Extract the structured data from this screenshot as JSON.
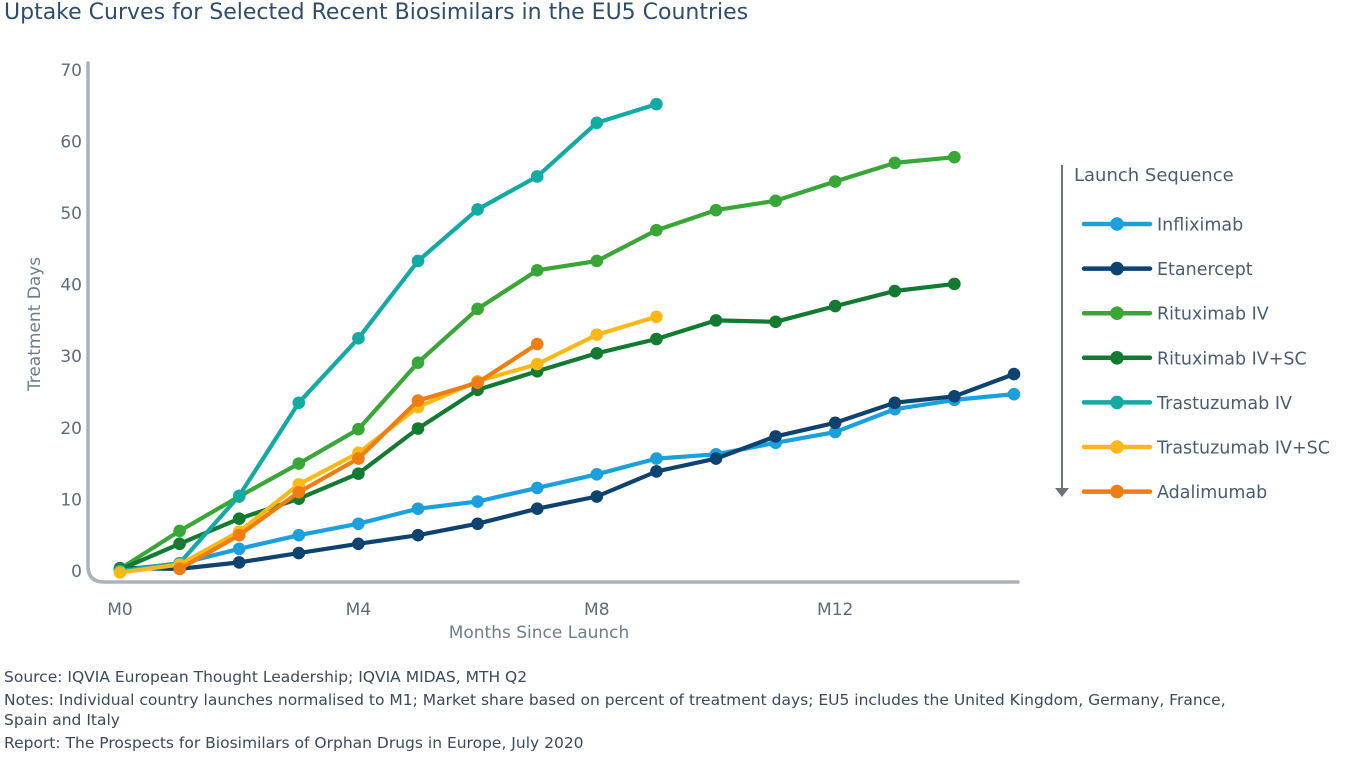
{
  "chart_data": {
    "type": "line",
    "title": "Uptake Curves for Selected Recent Biosimilars in the EU5 Countries",
    "xlabel": "Months Since Launch",
    "ylabel": "Treatment Days",
    "xlim": [
      0,
      15
    ],
    "ylim": [
      0,
      70
    ],
    "x_ticks": [
      0,
      4,
      8,
      12
    ],
    "x_tick_labels": [
      "M0",
      "M4",
      "M8",
      "M12"
    ],
    "y_ticks": [
      0,
      10,
      20,
      30,
      40,
      50,
      60,
      70
    ],
    "y_tick_labels": [
      "0",
      "10",
      "20",
      "30",
      "40",
      "50",
      "60",
      "70"
    ],
    "grid": false,
    "legend_title": "Launch Sequence",
    "legend_position": "right",
    "series": [
      {
        "name": "Infliximab",
        "color": "#1ba0db",
        "x": [
          0,
          1,
          2,
          3,
          4,
          5,
          6,
          7,
          8,
          9,
          10,
          11,
          12,
          13,
          14,
          15
        ],
        "values": [
          0.2,
          1.0,
          3.1,
          5.0,
          6.6,
          8.7,
          9.7,
          11.6,
          13.5,
          15.7,
          16.3,
          17.9,
          19.4,
          22.6,
          23.9,
          24.7
        ]
      },
      {
        "name": "Etanercept",
        "color": "#0e426f",
        "x": [
          0,
          1,
          2,
          3,
          4,
          5,
          6,
          7,
          8,
          9,
          10,
          11,
          12,
          13,
          14,
          15
        ],
        "values": [
          0.4,
          0.3,
          1.2,
          2.5,
          3.8,
          5.0,
          6.6,
          8.7,
          10.4,
          13.9,
          15.7,
          18.8,
          20.7,
          23.5,
          24.4,
          27.5
        ]
      },
      {
        "name": "Rituximab IV",
        "color": "#3aa638",
        "x": [
          0,
          1,
          2,
          3,
          4,
          5,
          6,
          7,
          8,
          9,
          10,
          11,
          12,
          13,
          14
        ],
        "values": [
          0.3,
          5.6,
          10.4,
          15.0,
          19.8,
          29.1,
          36.6,
          42.0,
          43.3,
          47.6,
          50.4,
          51.7,
          54.4,
          57.0,
          57.8
        ]
      },
      {
        "name": "Rituximab IV+SC",
        "color": "#127a31",
        "x": [
          0,
          1,
          2,
          3,
          4,
          5,
          6,
          7,
          8,
          9,
          10,
          11,
          12,
          13,
          14
        ],
        "values": [
          0.2,
          3.8,
          7.3,
          10.1,
          13.6,
          19.9,
          25.3,
          27.9,
          30.4,
          32.4,
          35.0,
          34.8,
          37.0,
          39.1,
          40.1
        ]
      },
      {
        "name": "Trastuzumab IV",
        "color": "#14aaa4",
        "x": [
          0,
          1,
          2,
          3,
          4,
          5,
          6,
          7,
          8,
          9
        ],
        "values": [
          0.0,
          1.1,
          10.5,
          23.5,
          32.5,
          43.3,
          50.5,
          55.1,
          62.6,
          65.2
        ]
      },
      {
        "name": "Trastuzumab IV+SC",
        "color": "#fbb816",
        "x": [
          0,
          1,
          2,
          3,
          4,
          5,
          6,
          7,
          8,
          9
        ],
        "values": [
          -0.2,
          0.9,
          5.5,
          12.1,
          16.5,
          22.9,
          26.5,
          28.9,
          33.0,
          35.5
        ]
      },
      {
        "name": "Adalimumab",
        "color": "#ee7d13",
        "x": [
          1,
          2,
          3,
          4,
          5,
          6,
          7
        ],
        "values": [
          0.3,
          5.0,
          11.0,
          15.7,
          23.8,
          26.3,
          31.7
        ]
      }
    ]
  },
  "footnotes": {
    "source": "Source: IQVIA European Thought Leadership; IQVIA MIDAS, MTH Q2",
    "notes_line1": "Notes: Individual country launches normalised to M1; Market share based on percent of treatment days; EU5 includes the United Kingdom, Germany, France,",
    "notes_line2": "Spain and Italy",
    "report": "Report: The Prospects for Biosimilars of Orphan Drugs in Europe, July 2020"
  },
  "colors": {
    "axis": "#a9b2bb",
    "legend_arrow": "#6b7580"
  }
}
